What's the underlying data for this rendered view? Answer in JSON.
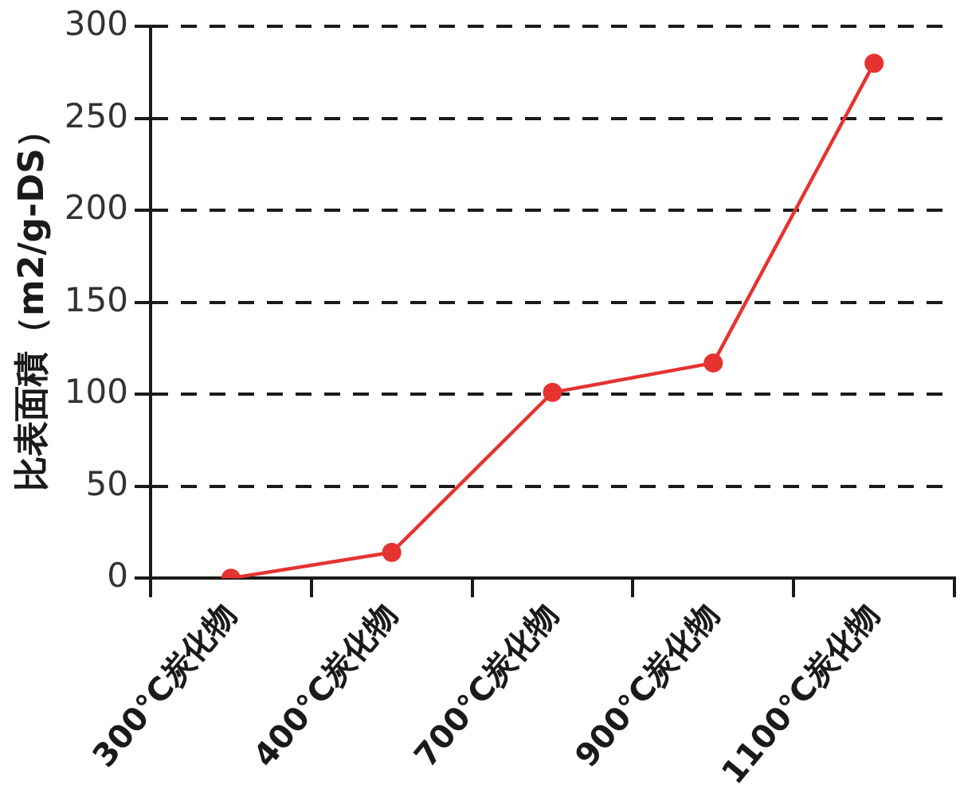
{
  "chart_data": {
    "type": "line",
    "ylabel": "比表面積（m2/g-DS）",
    "categories": [
      "300°C炭化物",
      "400°C炭化物",
      "700°C炭化物",
      "900°C炭化物",
      "1100°C炭化物"
    ],
    "series": [
      {
        "color": "#e53330",
        "values": [
          0,
          14,
          101,
          117,
          280
        ]
      }
    ],
    "ylim": [
      0,
      300
    ],
    "yticks": [
      0,
      50,
      100,
      150,
      200,
      250,
      300
    ],
    "grid": "y",
    "marker": "circle",
    "line_style": "solid",
    "legend": false
  }
}
